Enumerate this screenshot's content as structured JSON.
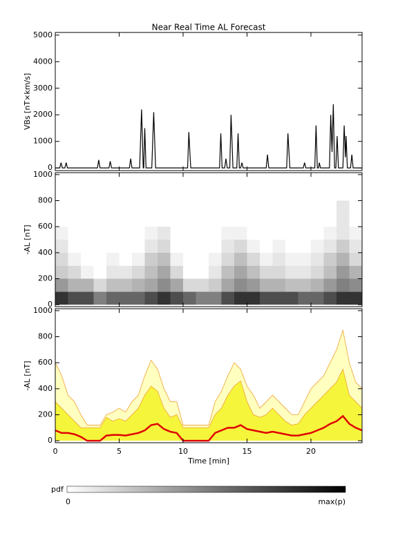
{
  "chart_data": [
    {
      "type": "line",
      "title": "Near Real Time AL Forecast",
      "ylabel": "VBs [nT×km/s]",
      "xlim": [
        0,
        24
      ],
      "xticks": [
        0,
        5,
        10,
        15,
        20
      ],
      "xtick_labels": false,
      "ylim": [
        -100,
        5100
      ],
      "yticks": [
        0,
        1000,
        2000,
        3000,
        4000,
        5000
      ],
      "x": [
        0,
        0.35,
        0.45,
        0.55,
        0.75,
        0.85,
        0.95,
        3.3,
        3.4,
        3.5,
        4.2,
        4.3,
        4.4,
        5.8,
        5.9,
        6.0,
        6.6,
        6.75,
        6.88,
        6.92,
        7.0,
        7.1,
        7.55,
        7.7,
        7.85,
        10.35,
        10.45,
        10.55,
        10.6,
        12.85,
        12.95,
        13.05,
        13.25,
        13.35,
        13.45,
        13.65,
        13.75,
        13.9,
        14.2,
        14.3,
        14.4,
        14.5,
        14.6,
        14.7,
        16.5,
        16.6,
        16.7,
        18.1,
        18.2,
        18.35,
        19.4,
        19.5,
        19.6,
        20.3,
        20.4,
        20.5,
        20.6,
        20.65,
        20.75,
        21.45,
        21.55,
        21.65,
        21.75,
        21.85,
        21.95,
        22.05,
        22.15,
        22.5,
        22.6,
        22.7,
        22.75,
        22.85,
        23.1,
        23.2,
        23.3,
        24
      ],
      "series": [
        {
          "color": "#000000",
          "values": [
            0,
            0,
            200,
            0,
            0,
            200,
            0,
            0,
            300,
            0,
            0,
            250,
            0,
            0,
            350,
            0,
            0,
            2200,
            0,
            0,
            1500,
            0,
            0,
            2100,
            0,
            0,
            1350,
            400,
            0,
            0,
            1300,
            0,
            0,
            350,
            0,
            0,
            2000,
            0,
            0,
            1300,
            0,
            0,
            200,
            0,
            0,
            500,
            0,
            0,
            1300,
            0,
            0,
            200,
            0,
            0,
            1600,
            0,
            0,
            200,
            0,
            0,
            2000,
            600,
            2400,
            0,
            0,
            1200,
            0,
            0,
            1600,
            400,
            1200,
            0,
            0,
            500,
            0,
            0
          ]
        }
      ]
    },
    {
      "type": "heatmap",
      "ylabel": "-AL [nT]",
      "xlim": [
        0,
        24
      ],
      "xticks": [
        0,
        5,
        10,
        15,
        20
      ],
      "xtick_labels": false,
      "ylim": [
        -15,
        1015
      ],
      "yticks": [
        0,
        200,
        400,
        600,
        800,
        1000
      ],
      "colormap": [
        "#ffffff",
        "#000000"
      ],
      "x_edges": [
        0,
        1,
        2,
        3,
        4,
        5,
        6,
        7,
        8,
        9,
        10,
        11,
        12,
        13,
        14,
        15,
        16,
        17,
        18,
        19,
        20,
        21,
        22,
        23,
        24
      ],
      "y_edges": [
        0,
        100,
        200,
        300,
        400,
        500,
        600,
        700,
        800
      ],
      "z": [
        [
          0.8,
          0.7,
          0.7,
          0.5,
          0.6,
          0.6,
          0.6,
          0.7,
          0.8,
          0.7,
          0.6,
          0.5,
          0.5,
          0.7,
          0.8,
          0.8,
          0.7,
          0.7,
          0.7,
          0.6,
          0.6,
          0.7,
          0.8,
          0.8
        ],
        [
          0.4,
          0.3,
          0.3,
          0.15,
          0.25,
          0.25,
          0.3,
          0.35,
          0.45,
          0.35,
          0.15,
          0.15,
          0.2,
          0.35,
          0.45,
          0.4,
          0.3,
          0.3,
          0.25,
          0.25,
          0.3,
          0.4,
          0.5,
          0.45
        ],
        [
          0.2,
          0.15,
          0.05,
          0,
          0.1,
          0.1,
          0.15,
          0.25,
          0.35,
          0.15,
          0,
          0,
          0.1,
          0.25,
          0.35,
          0.25,
          0.15,
          0.15,
          0.1,
          0.1,
          0.15,
          0.25,
          0.4,
          0.3
        ],
        [
          0.15,
          0.05,
          0,
          0,
          0.05,
          0,
          0.05,
          0.2,
          0.25,
          0.05,
          0,
          0,
          0.05,
          0.15,
          0.25,
          0.15,
          0.05,
          0.1,
          0.05,
          0.05,
          0.1,
          0.2,
          0.3,
          0.15
        ],
        [
          0.1,
          0,
          0,
          0,
          0,
          0,
          0,
          0.1,
          0.15,
          0,
          0,
          0,
          0,
          0.1,
          0.15,
          0.05,
          0,
          0.05,
          0,
          0,
          0.05,
          0.1,
          0.2,
          0.1
        ],
        [
          0.05,
          0,
          0,
          0,
          0,
          0,
          0,
          0.05,
          0.1,
          0,
          0,
          0,
          0,
          0.05,
          0.05,
          0,
          0,
          0,
          0,
          0,
          0,
          0.05,
          0.1,
          0.05
        ],
        [
          0,
          0,
          0,
          0,
          0,
          0,
          0,
          0,
          0,
          0,
          0,
          0,
          0,
          0,
          0,
          0,
          0,
          0,
          0,
          0,
          0,
          0,
          0.1,
          0
        ],
        [
          0,
          0,
          0,
          0,
          0,
          0,
          0,
          0,
          0,
          0,
          0,
          0,
          0,
          0,
          0,
          0,
          0,
          0,
          0,
          0,
          0,
          0,
          0.1,
          0
        ]
      ]
    },
    {
      "type": "area",
      "ylabel": "-AL [nT]",
      "xlabel": "Time [min]",
      "xlim": [
        0,
        24
      ],
      "xticks": [
        0,
        5,
        10,
        15,
        20
      ],
      "xtick_labels": true,
      "ylim": [
        -15,
        1015
      ],
      "yticks": [
        0,
        200,
        400,
        600,
        800,
        1000
      ],
      "x": [
        0,
        0.5,
        1,
        1.5,
        2,
        2.5,
        3,
        3.5,
        4,
        4.5,
        5,
        5.5,
        6,
        6.5,
        7,
        7.5,
        8,
        8.5,
        9,
        9.5,
        10,
        10.5,
        11,
        11.5,
        12,
        12.5,
        13,
        13.5,
        14,
        14.5,
        15,
        15.5,
        16,
        16.5,
        17,
        17.5,
        18,
        18.5,
        19,
        19.5,
        20,
        20.5,
        21,
        21.5,
        22,
        22.5,
        23,
        23.5,
        24
      ],
      "series": [
        {
          "color": "#f0a030",
          "fill": "#ffffc0",
          "values": [
            600,
            500,
            350,
            300,
            200,
            120,
            120,
            120,
            200,
            220,
            250,
            220,
            300,
            350,
            500,
            620,
            550,
            400,
            300,
            300,
            120,
            120,
            120,
            120,
            120,
            300,
            380,
            500,
            600,
            550,
            420,
            350,
            250,
            300,
            350,
            300,
            250,
            200,
            200,
            300,
            400,
            450,
            500,
            600,
            700,
            850,
            600,
            450,
            400
          ]
        },
        {
          "color": "#f0a030",
          "fill": "#f5f53c",
          "values": [
            300,
            250,
            200,
            150,
            100,
            100,
            100,
            100,
            180,
            150,
            170,
            150,
            200,
            250,
            350,
            420,
            380,
            250,
            180,
            200,
            100,
            100,
            100,
            100,
            100,
            200,
            250,
            350,
            420,
            460,
            300,
            200,
            180,
            200,
            250,
            200,
            150,
            120,
            130,
            200,
            250,
            300,
            350,
            400,
            450,
            550,
            350,
            300,
            250
          ]
        },
        {
          "color": "#e00000",
          "values": [
            80,
            60,
            60,
            50,
            30,
            0,
            0,
            0,
            40,
            45,
            45,
            40,
            50,
            60,
            80,
            120,
            130,
            90,
            70,
            60,
            0,
            0,
            0,
            0,
            0,
            60,
            80,
            100,
            100,
            120,
            90,
            80,
            70,
            60,
            70,
            60,
            50,
            40,
            40,
            50,
            60,
            80,
            100,
            130,
            150,
            190,
            130,
            100,
            80
          ]
        }
      ]
    }
  ],
  "colorbar": {
    "label": "pdf",
    "min_label": "0",
    "max_label": "max(p)"
  }
}
